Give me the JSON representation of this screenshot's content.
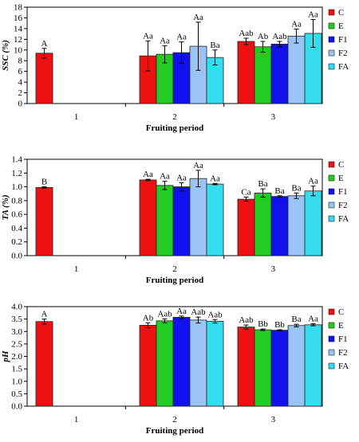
{
  "series_meta": [
    {
      "name": "C",
      "color": "#ee1111"
    },
    {
      "name": "E",
      "color": "#22cc22"
    },
    {
      "name": "F1",
      "color": "#1111ee"
    },
    {
      "name": "F2",
      "color": "#99c4f4"
    },
    {
      "name": "FA",
      "color": "#33ddee"
    }
  ],
  "chart_data": [
    {
      "type": "bar",
      "ylabel": "SSC (%)",
      "xlabel": "Fruiting period",
      "categories": [
        "1",
        "2",
        "3"
      ],
      "ylim": [
        0,
        18
      ],
      "yticks": [
        0,
        2,
        4,
        6,
        8,
        10,
        12,
        14,
        16,
        18
      ],
      "legend_position": "right",
      "series": [
        {
          "name": "C",
          "values": [
            9.4,
            8.9,
            11.6
          ],
          "errors": [
            0.9,
            2.8,
            0.6
          ],
          "labels": [
            "A",
            "Aa",
            "Aab"
          ]
        },
        {
          "name": "E",
          "values": [
            null,
            9.2,
            10.6
          ],
          "errors": [
            null,
            1.6,
            1.0
          ],
          "labels": [
            "",
            "Aa",
            "Ab"
          ]
        },
        {
          "name": "F1",
          "values": [
            null,
            9.5,
            11.1
          ],
          "errors": [
            null,
            2.0,
            0.5
          ],
          "labels": [
            "",
            "Aa",
            "Aab"
          ]
        },
        {
          "name": "F2",
          "values": [
            null,
            10.7,
            12.6
          ],
          "errors": [
            null,
            4.5,
            1.3
          ],
          "labels": [
            "",
            "Aa",
            "Aa"
          ]
        },
        {
          "name": "FA",
          "values": [
            null,
            8.6,
            13.1
          ],
          "errors": [
            null,
            1.4,
            2.6
          ],
          "labels": [
            "",
            "Ba",
            "Aa"
          ]
        }
      ]
    },
    {
      "type": "bar",
      "ylabel": "TA (%)",
      "xlabel": "Fruiting period",
      "categories": [
        "1",
        "2",
        "3"
      ],
      "ylim": [
        0,
        1.4
      ],
      "yticks": [
        "0.0",
        "0.2",
        "0.4",
        "0.6",
        "0.8",
        "1.0",
        "1.2",
        "1.4"
      ],
      "legend_position": "right",
      "series": [
        {
          "name": "C",
          "values": [
            0.99,
            1.1,
            0.82
          ],
          "errors": [
            0.01,
            0.01,
            0.03
          ],
          "labels": [
            "B",
            "Aa",
            "Ca"
          ]
        },
        {
          "name": "E",
          "values": [
            null,
            1.02,
            0.91
          ],
          "errors": [
            null,
            0.06,
            0.06
          ],
          "labels": [
            "",
            "Aa",
            "Ba"
          ]
        },
        {
          "name": "F1",
          "values": [
            null,
            1.0,
            0.86
          ],
          "errors": [
            null,
            0.06,
            0.01
          ],
          "labels": [
            "",
            "Aa",
            "Ba"
          ]
        },
        {
          "name": "F2",
          "values": [
            null,
            1.12,
            0.87
          ],
          "errors": [
            null,
            0.12,
            0.04
          ],
          "labels": [
            "",
            "Aa",
            "Ba"
          ]
        },
        {
          "name": "FA",
          "values": [
            null,
            1.04,
            0.94
          ],
          "errors": [
            null,
            0.01,
            0.07
          ],
          "labels": [
            "",
            "Aa",
            "Aa"
          ]
        }
      ]
    },
    {
      "type": "bar",
      "ylabel": "pH",
      "xlabel": "Fruiting period",
      "categories": [
        "1",
        "2",
        "3"
      ],
      "ylim": [
        0,
        4.0
      ],
      "yticks": [
        "0.0",
        "0.5",
        "1.0",
        "1.5",
        "2.0",
        "2.5",
        "3.0",
        "3.5",
        "4.0"
      ],
      "legend_position": "right",
      "series": [
        {
          "name": "C",
          "values": [
            3.4,
            3.25,
            3.18
          ],
          "errors": [
            0.1,
            0.1,
            0.08
          ],
          "labels": [
            "A",
            "Ab",
            "Aab"
          ]
        },
        {
          "name": "E",
          "values": [
            null,
            3.43,
            3.07
          ],
          "errors": [
            null,
            0.08,
            0.03
          ],
          "labels": [
            "",
            "Aab",
            "Bb"
          ]
        },
        {
          "name": "F1",
          "values": [
            null,
            3.57,
            3.05
          ],
          "errors": [
            null,
            0.05,
            0.02
          ],
          "labels": [
            "",
            "Aa",
            "Bb"
          ]
        },
        {
          "name": "F2",
          "values": [
            null,
            3.46,
            3.24
          ],
          "errors": [
            null,
            0.12,
            0.05
          ],
          "labels": [
            "",
            "Aab",
            "Ba"
          ]
        },
        {
          "name": "FA",
          "values": [
            null,
            3.41,
            3.27
          ],
          "errors": [
            null,
            0.07,
            0.04
          ],
          "labels": [
            "",
            "Aab",
            "Aa"
          ]
        }
      ]
    }
  ]
}
